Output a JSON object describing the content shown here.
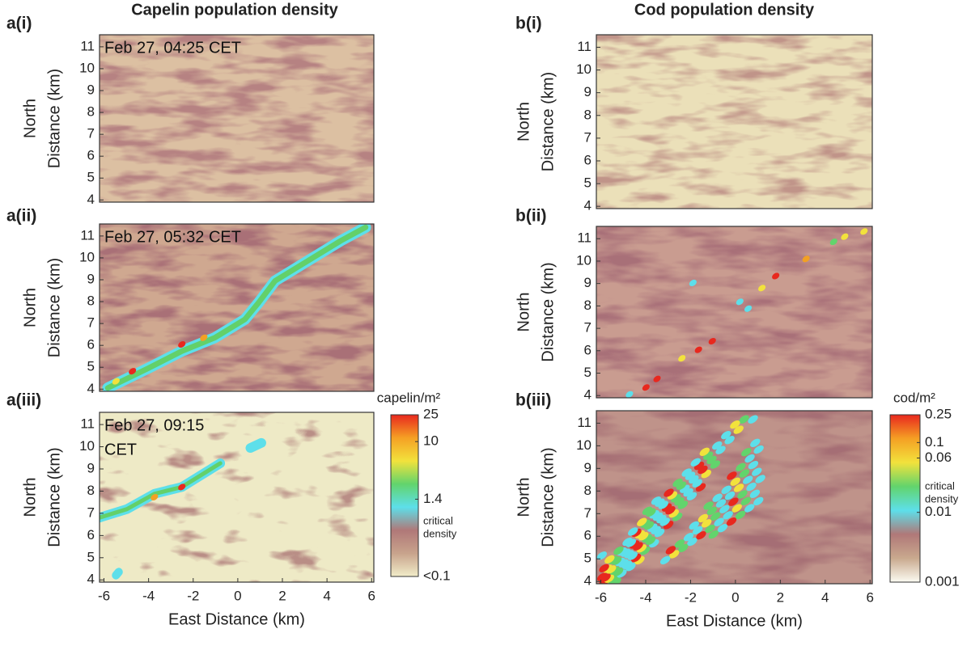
{
  "chart_data": [
    {
      "type": "heatmap",
      "title": "Capelin population density",
      "panel_label": "a(i)",
      "annotation": [
        "Feb 27, 04:25 CET"
      ],
      "ylabel": [
        "North",
        "Distance (km)"
      ],
      "ylim": [
        3.9,
        11.55
      ],
      "yticks": [
        4,
        5,
        6,
        7,
        8,
        9,
        10,
        11
      ]
    },
    {
      "type": "heatmap",
      "panel_label": "a(ii)",
      "annotation": [
        "Feb 27, 05:32 CET"
      ],
      "ylabel": [
        "North",
        "Distance (km)"
      ],
      "ylim": [
        3.9,
        11.55
      ],
      "yticks": [
        4,
        5,
        6,
        7,
        8,
        9,
        10,
        11
      ]
    },
    {
      "type": "heatmap",
      "panel_label": "a(iii)",
      "annotation": [
        "Feb 27, 09:15",
        "CET"
      ],
      "ylabel": [
        "North",
        "Distance (km)"
      ],
      "ylim": [
        3.9,
        11.55
      ],
      "yticks": [
        4,
        5,
        6,
        7,
        8,
        9,
        10,
        11
      ],
      "xlabel": "East Distance (km)",
      "xlim": [
        -6.2,
        6.1
      ],
      "xticks": [
        -6,
        -4,
        -2,
        0,
        2,
        4,
        6
      ],
      "colorbar": {
        "label": "capelin/m²",
        "log": true,
        "lim": [
          0.1,
          25
        ],
        "ticks": [
          {
            "value": 0.1,
            "label": "<0.1"
          },
          1.4,
          10,
          25
        ],
        "note": [
          "critical",
          "density"
        ],
        "colors": [
          "#e8281e",
          "#f5a024",
          "#f2e23c",
          "#62d46c",
          "#5ddfea",
          "#b07878",
          "#c8a38c",
          "#f1edc9"
        ]
      }
    },
    {
      "type": "heatmap",
      "title": "Cod population density",
      "panel_label": "b(i)",
      "ylabel": [
        "North",
        "Distance (km)"
      ],
      "ylim": [
        3.9,
        11.55
      ],
      "yticks": [
        4,
        5,
        6,
        7,
        8,
        9,
        10,
        11
      ]
    },
    {
      "type": "heatmap",
      "panel_label": "b(ii)",
      "ylabel": [
        "North",
        "Distance (km)"
      ],
      "ylim": [
        3.9,
        11.55
      ],
      "yticks": [
        4,
        5,
        6,
        7,
        8,
        9,
        10,
        11
      ]
    },
    {
      "type": "heatmap",
      "panel_label": "b(iii)",
      "ylabel": [
        "North",
        "Distance (km)"
      ],
      "ylim": [
        3.9,
        11.55
      ],
      "yticks": [
        4,
        5,
        6,
        7,
        8,
        9,
        10,
        11
      ],
      "xlabel": "East Distance (km)",
      "xlim": [
        -6.2,
        6.1
      ],
      "xticks": [
        -6,
        -4,
        -2,
        0,
        2,
        4,
        6
      ],
      "colorbar": {
        "label": "cod/m²",
        "log": true,
        "lim": [
          0.001,
          0.25
        ],
        "ticks": [
          0.001,
          0.01,
          0.06,
          0.1,
          0.25
        ],
        "note": [
          "critical",
          "density"
        ],
        "colors": [
          "#e8281e",
          "#f5a024",
          "#f2e23c",
          "#62d46c",
          "#5ddfea",
          "#b07878",
          "#c9a98e",
          "#fbfbf2"
        ]
      }
    }
  ]
}
